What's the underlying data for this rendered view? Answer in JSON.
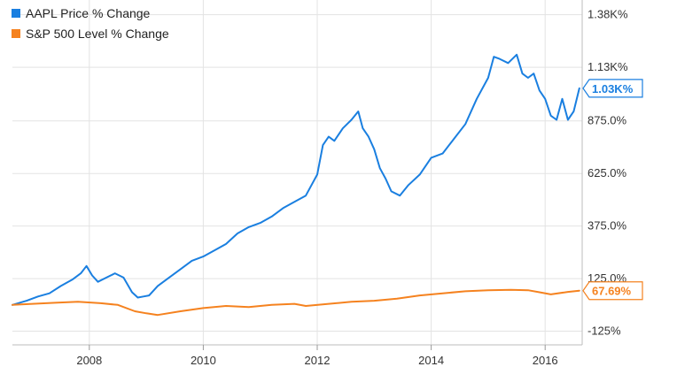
{
  "chart_data": {
    "type": "line",
    "title": "",
    "xlabel": "",
    "ylabel": "",
    "xlim": [
      2006.65,
      2016.65
    ],
    "ylim": [
      -190,
      1450
    ],
    "x_ticks": [
      {
        "value": 2008,
        "label": "2008"
      },
      {
        "value": 2010,
        "label": "2010"
      },
      {
        "value": 2012,
        "label": "2012"
      },
      {
        "value": 2014,
        "label": "2014"
      },
      {
        "value": 2016,
        "label": "2016"
      }
    ],
    "y_ticks": [
      {
        "value": 1380,
        "label": "1.38K%"
      },
      {
        "value": 1130,
        "label": "1.13K%"
      },
      {
        "value": 875,
        "label": "875.0%"
      },
      {
        "value": 625,
        "label": "625.0%"
      },
      {
        "value": 375,
        "label": "375.0%"
      },
      {
        "value": 125,
        "label": "125.0%"
      },
      {
        "value": -125,
        "label": "-125%"
      }
    ],
    "grid": {
      "horizontal": true,
      "vertical": true
    },
    "legend_position": "top-left",
    "series": [
      {
        "name": "AAPL Price % Change",
        "color": "#1a7fe0",
        "end_label": "1.03K%",
        "end_value": 1030,
        "x": [
          2006.65,
          2006.9,
          2007.1,
          2007.3,
          2007.5,
          2007.7,
          2007.85,
          2007.95,
          2008.05,
          2008.15,
          2008.3,
          2008.45,
          2008.6,
          2008.75,
          2008.85,
          2008.95,
          2009.05,
          2009.2,
          2009.4,
          2009.6,
          2009.8,
          2010.0,
          2010.2,
          2010.4,
          2010.6,
          2010.8,
          2011.0,
          2011.2,
          2011.4,
          2011.6,
          2011.8,
          2012.0,
          2012.1,
          2012.2,
          2012.3,
          2012.45,
          2012.6,
          2012.72,
          2012.8,
          2012.9,
          2013.0,
          2013.1,
          2013.2,
          2013.3,
          2013.45,
          2013.6,
          2013.8,
          2014.0,
          2014.2,
          2014.4,
          2014.6,
          2014.8,
          2015.0,
          2015.1,
          2015.2,
          2015.35,
          2015.5,
          2015.6,
          2015.7,
          2015.8,
          2015.9,
          2016.0,
          2016.1,
          2016.2,
          2016.3,
          2016.4,
          2016.5,
          2016.6
        ],
        "y": [
          0,
          20,
          40,
          55,
          90,
          120,
          150,
          185,
          140,
          110,
          130,
          150,
          130,
          60,
          35,
          40,
          45,
          90,
          130,
          170,
          210,
          230,
          260,
          290,
          340,
          370,
          390,
          420,
          460,
          490,
          520,
          620,
          760,
          800,
          780,
          840,
          880,
          920,
          840,
          800,
          740,
          650,
          600,
          540,
          520,
          570,
          620,
          700,
          720,
          790,
          860,
          980,
          1080,
          1180,
          1170,
          1150,
          1190,
          1100,
          1080,
          1100,
          1020,
          980,
          900,
          880,
          980,
          880,
          920,
          1030
        ]
      },
      {
        "name": "S&P 500 Level % Change",
        "color": "#f5821f",
        "end_label": "67.69%",
        "end_value": 67.69,
        "x": [
          2006.65,
          2007.0,
          2007.4,
          2007.8,
          2008.2,
          2008.5,
          2008.8,
          2009.0,
          2009.2,
          2009.6,
          2010.0,
          2010.4,
          2010.8,
          2011.2,
          2011.6,
          2011.8,
          2012.2,
          2012.6,
          2013.0,
          2013.4,
          2013.8,
          2014.2,
          2014.6,
          2015.0,
          2015.4,
          2015.7,
          2015.9,
          2016.1,
          2016.4,
          2016.6
        ],
        "y": [
          0,
          5,
          10,
          15,
          8,
          0,
          -30,
          -40,
          -48,
          -30,
          -15,
          -5,
          -10,
          0,
          5,
          -5,
          5,
          15,
          20,
          30,
          45,
          55,
          65,
          70,
          72,
          70,
          60,
          50,
          62,
          67.69
        ]
      }
    ]
  }
}
